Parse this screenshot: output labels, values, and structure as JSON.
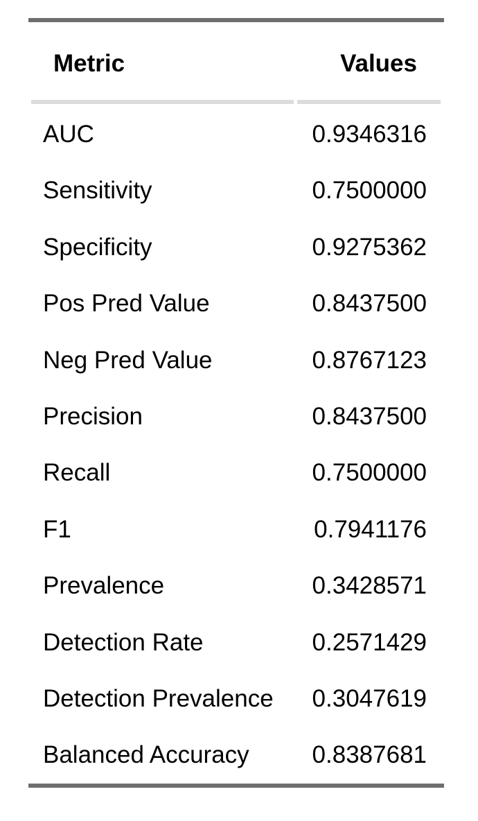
{
  "table": {
    "headers": {
      "metric": "Metric",
      "values": "Values"
    },
    "rows": [
      {
        "metric": "AUC",
        "value": "0.9346316"
      },
      {
        "metric": "Sensitivity",
        "value": "0.7500000"
      },
      {
        "metric": "Specificity",
        "value": "0.9275362"
      },
      {
        "metric": "Pos Pred Value",
        "value": "0.8437500"
      },
      {
        "metric": "Neg Pred Value",
        "value": "0.8767123"
      },
      {
        "metric": "Precision",
        "value": "0.8437500"
      },
      {
        "metric": "Recall",
        "value": "0.7500000"
      },
      {
        "metric": "F1",
        "value": "0.7941176"
      },
      {
        "metric": "Prevalence",
        "value": "0.3428571"
      },
      {
        "metric": "Detection Rate",
        "value": "0.2571429"
      },
      {
        "metric": "Detection Prevalence",
        "value": "0.3047619"
      },
      {
        "metric": "Balanced Accuracy",
        "value": "0.8387681"
      }
    ]
  }
}
